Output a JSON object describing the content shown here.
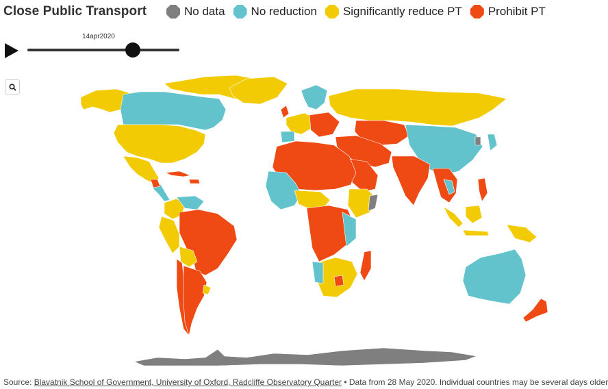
{
  "title": "Close Public Transport",
  "legend": [
    {
      "label": "No data",
      "color": "#7f7f7f"
    },
    {
      "label": "No reduction",
      "color": "#62c3cc"
    },
    {
      "label": "Significantly reduce PT",
      "color": "#f2cb05"
    },
    {
      "label": "Prohibit PT",
      "color": "#f04a14"
    }
  ],
  "slider": {
    "date": "14apr2020",
    "play_icon": "play-icon"
  },
  "zoom": {
    "icon": "search-icon"
  },
  "footer": {
    "prefix": "Source: ",
    "link": "Blavatnik School of Government, University of Oxford, Radcliffe Observatory Quarter",
    "suffix": " • Data from 28 May 2020. Individual countries may be several days older"
  }
}
